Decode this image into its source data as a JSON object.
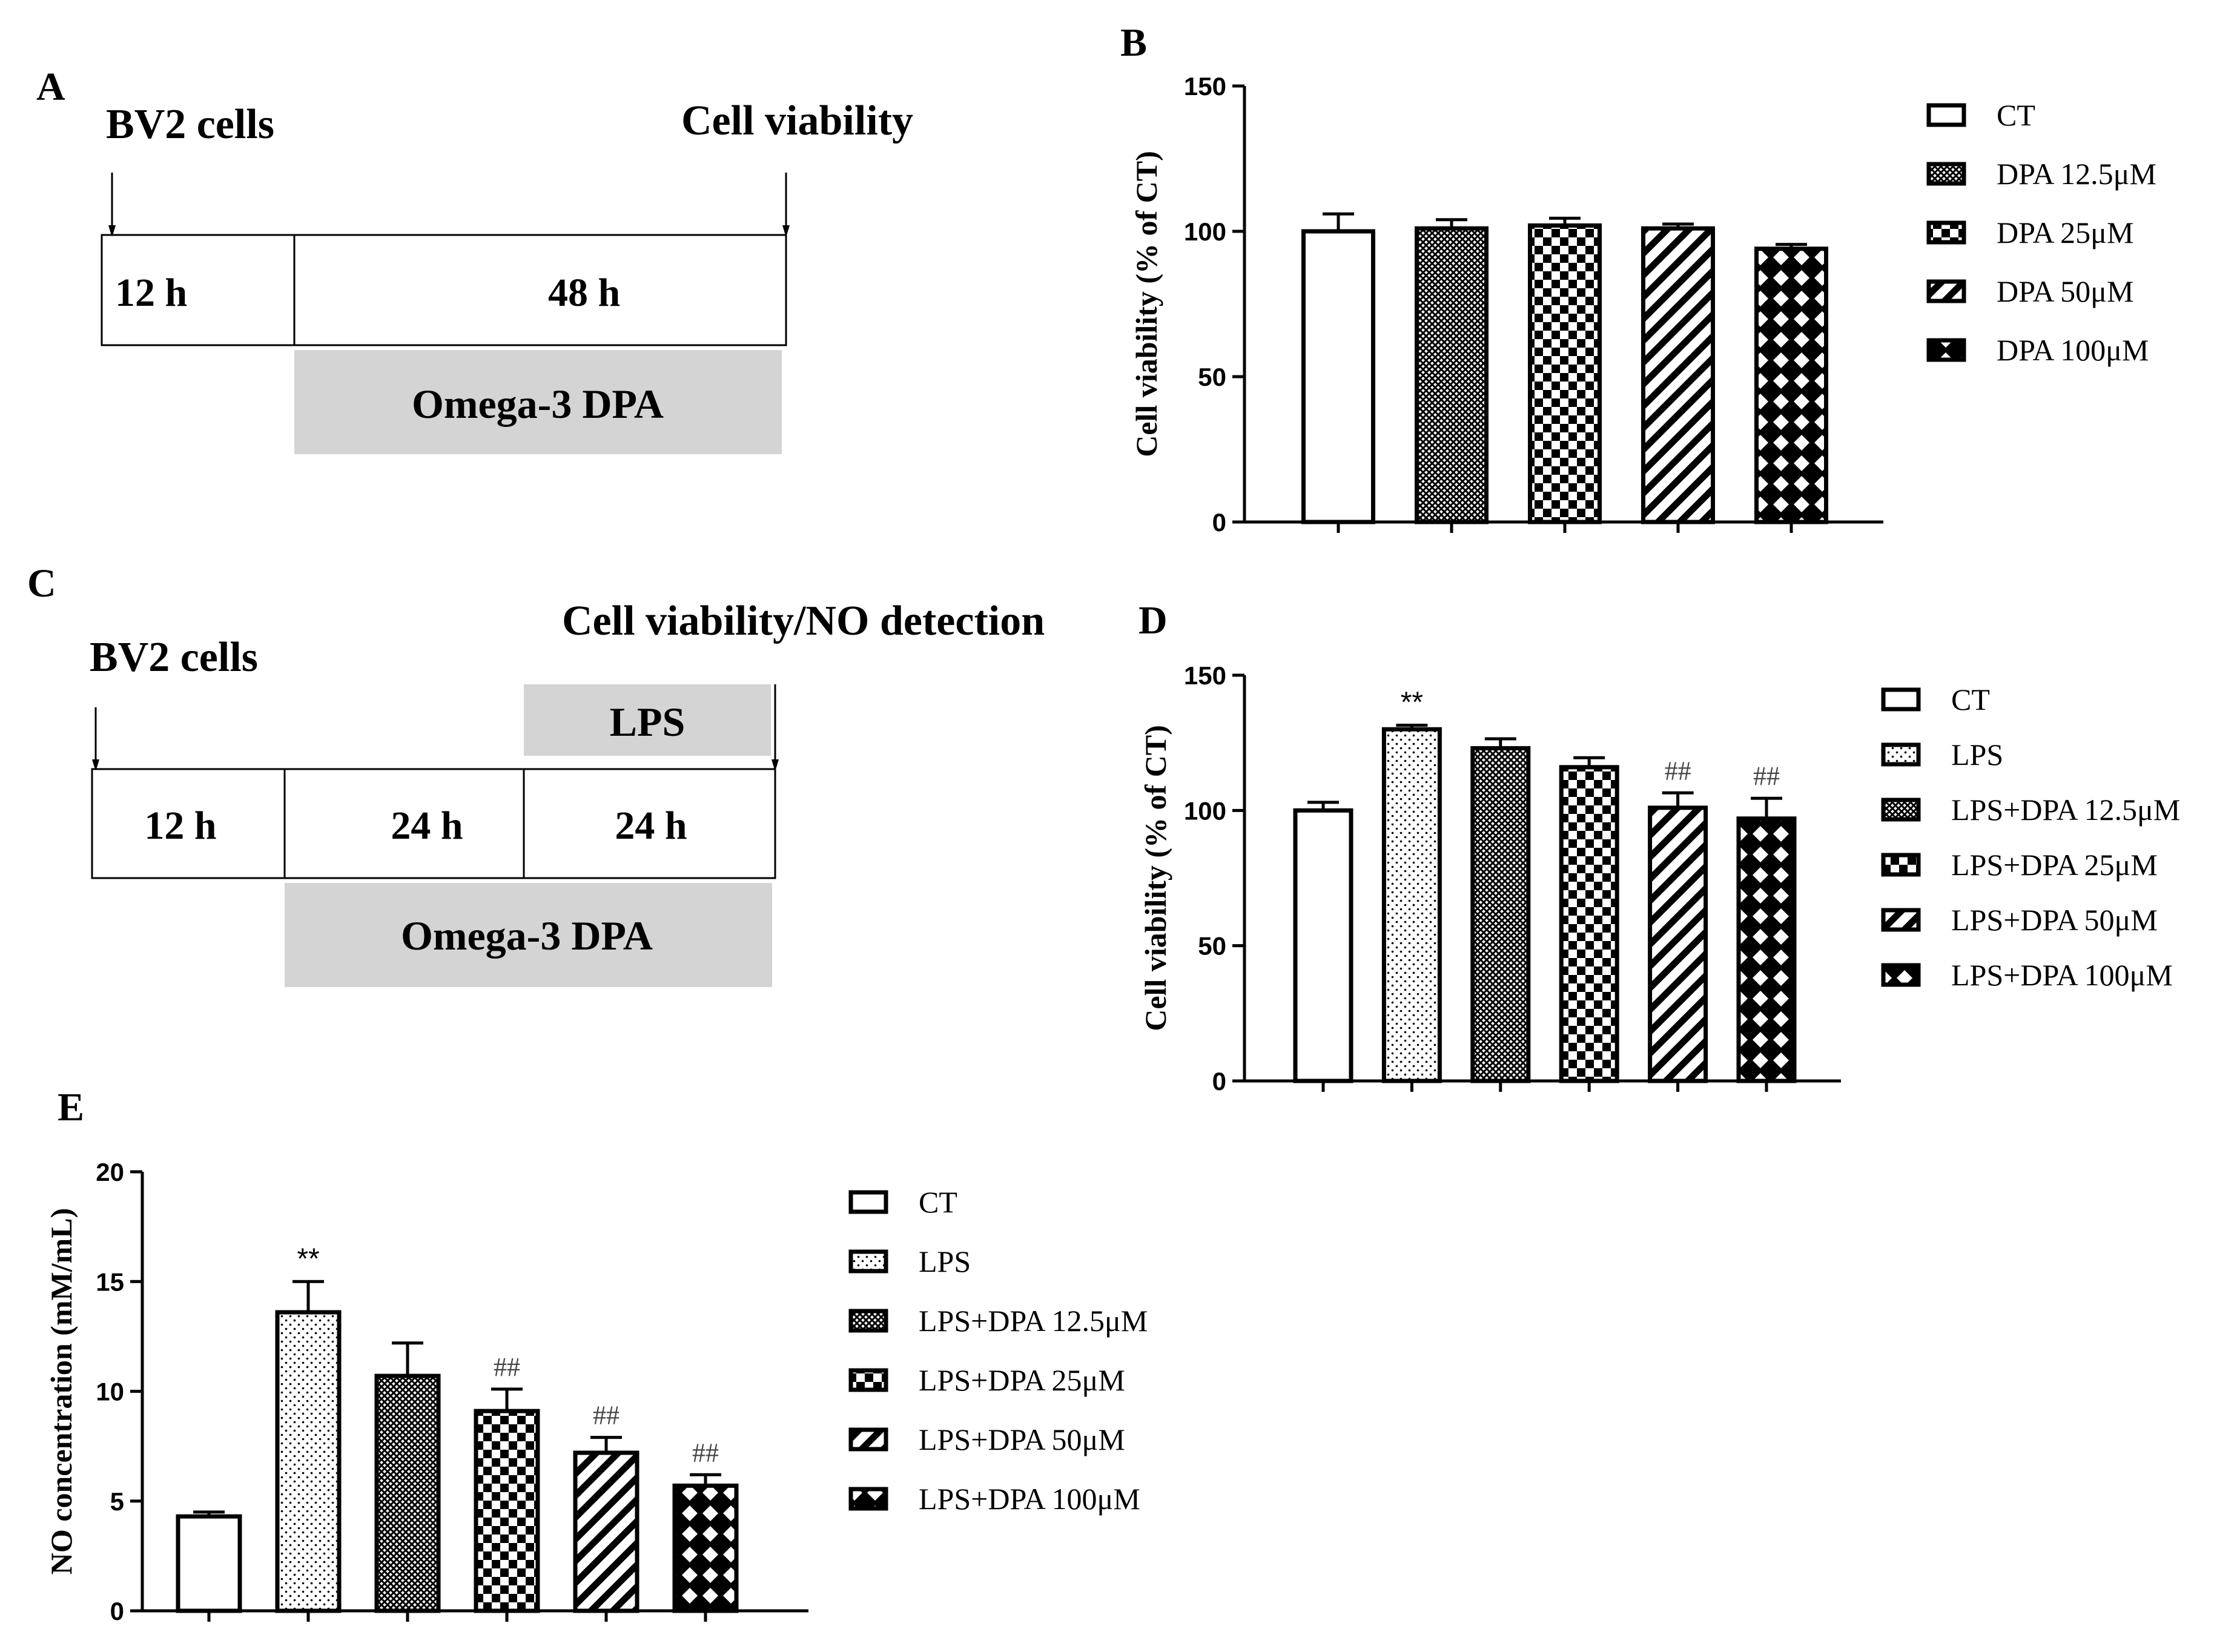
{
  "panels": {
    "A": {
      "letter": "A",
      "start_label": "BV2 cells",
      "end_label": "Cell viability",
      "segments": [
        "12 h",
        "48 h"
      ],
      "band_label": "Omega-3 DPA"
    },
    "C": {
      "letter": "C",
      "start_label": "BV2 cells",
      "end_label": "Cell viability/NO detection",
      "segments": [
        "12 h",
        "24 h",
        "24 h"
      ],
      "lps_label": "LPS",
      "band_label": "Omega-3 DPA"
    }
  },
  "colors": {
    "bar_fill": "#ffffff",
    "ink": "#000000",
    "band_gray": "#d4d4d4",
    "hash_gray": "#444444"
  },
  "chart_data": [
    {
      "id": "B",
      "letter": "B",
      "type": "bar",
      "ylabel": "Cell viability (% of CT)",
      "ylim": [
        0,
        150
      ],
      "yticks": [
        0,
        50,
        100,
        150
      ],
      "categories": [
        "CT",
        "DPA 12.5μM",
        "DPA 25μM",
        "DPA 50μM",
        "DPA 100μM"
      ],
      "patterns": [
        "none",
        "fine",
        "checker",
        "diag",
        "cross"
      ],
      "values": [
        100,
        101,
        102,
        101,
        94
      ],
      "errors": [
        6,
        3,
        2.5,
        1.5,
        1.5
      ],
      "sig": [
        "",
        "",
        "",
        "",
        ""
      ]
    },
    {
      "id": "D",
      "letter": "D",
      "type": "bar",
      "ylabel": "Cell viability (% of CT)",
      "ylim": [
        0,
        150
      ],
      "yticks": [
        0,
        50,
        100,
        150
      ],
      "categories": [
        "CT",
        "LPS",
        "LPS+DPA 12.5μM",
        "LPS+DPA 25μM",
        "LPS+DPA 50μM",
        "LPS+DPA 100μM"
      ],
      "patterns": [
        "none",
        "dots",
        "fine",
        "checker",
        "diag",
        "cross"
      ],
      "values": [
        100,
        130,
        123,
        116,
        101,
        97
      ],
      "errors": [
        3,
        1.5,
        3.5,
        3.5,
        5.5,
        7.5
      ],
      "sig": [
        "",
        "**",
        "",
        "",
        "##",
        "##"
      ]
    },
    {
      "id": "E",
      "letter": "E",
      "type": "bar",
      "ylabel": "NO concentration (mM/mL)",
      "ylim": [
        0,
        20
      ],
      "yticks": [
        0,
        5,
        10,
        15,
        20
      ],
      "categories": [
        "CT",
        "LPS",
        "LPS+DPA 12.5μM",
        "LPS+DPA 25μM",
        "LPS+DPA 50μM",
        "LPS+DPA 100μM"
      ],
      "patterns": [
        "none",
        "dots",
        "fine",
        "checker",
        "diag",
        "cross"
      ],
      "values": [
        4.3,
        13.6,
        10.7,
        9.1,
        7.2,
        5.7
      ],
      "errors": [
        0.2,
        1.4,
        1.5,
        1.0,
        0.7,
        0.5
      ],
      "sig": [
        "",
        "**",
        "",
        "##",
        "##",
        "##"
      ]
    }
  ]
}
